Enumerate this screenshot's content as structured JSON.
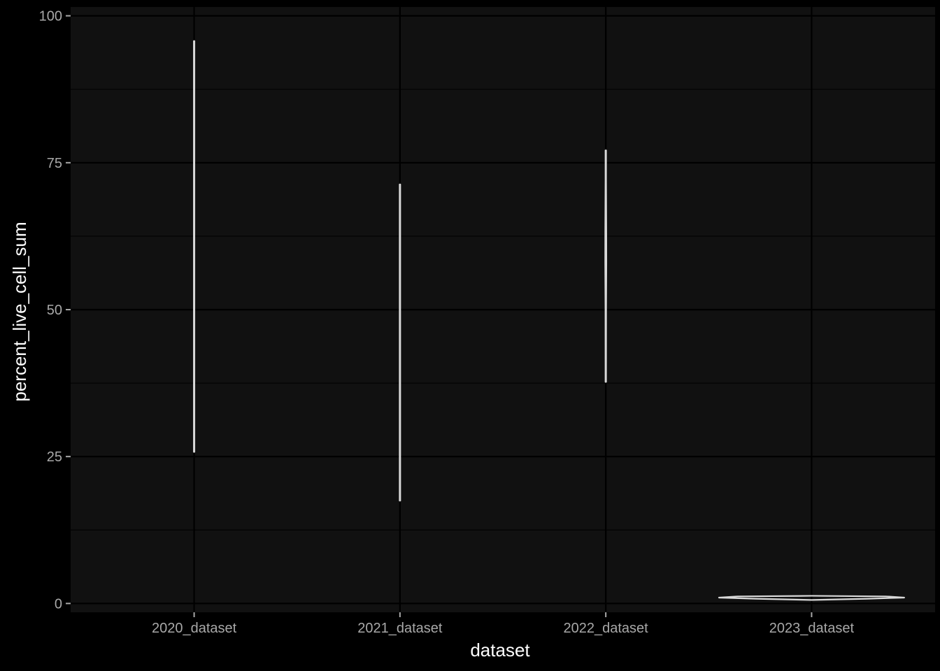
{
  "chart_data": {
    "type": "violin",
    "xlabel": "dataset",
    "ylabel": "percent_live_cell_sum",
    "categories": [
      "2020_dataset",
      "2021_dataset",
      "2022_dataset",
      "2023_dataset"
    ],
    "ylim": [
      -1.5,
      101.5
    ],
    "yticks": [
      0,
      25,
      50,
      75,
      100
    ],
    "grid": true,
    "violins": [
      {
        "category": "2020_dataset",
        "min": 25.8,
        "max": 95.7,
        "profile": [
          [
            25.8,
            0
          ],
          [
            35,
            0.18
          ],
          [
            50,
            0.25
          ],
          [
            65,
            0.25
          ],
          [
            80,
            0.15
          ],
          [
            95.7,
            0
          ]
        ]
      },
      {
        "category": "2021_dataset",
        "min": 17.5,
        "max": 71.3,
        "profile": [
          [
            17.5,
            0
          ],
          [
            30,
            0.15
          ],
          [
            45,
            0.25
          ],
          [
            55,
            0.25
          ],
          [
            65,
            0.12
          ],
          [
            71.3,
            0
          ]
        ]
      },
      {
        "category": "2022_dataset",
        "min": 37.7,
        "max": 77.1,
        "profile": [
          [
            37.7,
            0
          ],
          [
            50,
            0.35
          ],
          [
            58,
            0.6
          ],
          [
            63,
            0.55
          ],
          [
            72,
            0.2
          ],
          [
            77.1,
            0
          ]
        ]
      },
      {
        "category": "2023_dataset",
        "min": 0.6,
        "max": 1.3,
        "profile": [
          [
            0.6,
            0
          ],
          [
            0.8,
            60
          ],
          [
            1.0,
            100
          ],
          [
            1.2,
            80
          ],
          [
            1.3,
            0
          ]
        ]
      }
    ],
    "colors": {
      "background": "#000000",
      "panel": "#111111",
      "grid": "#000000",
      "violin_stroke": "#d9d9d9",
      "tick_label": "#a8a8a8",
      "axis_title": "#ffffff"
    }
  }
}
